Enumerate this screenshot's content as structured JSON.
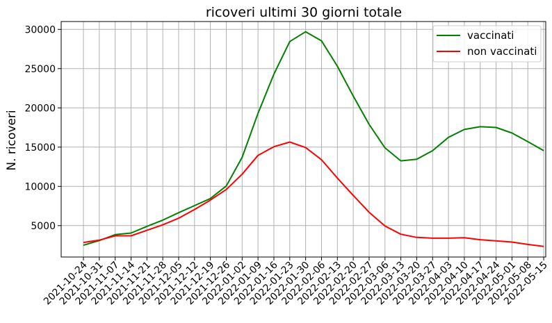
{
  "chart_data": {
    "type": "line",
    "title": "ricoveri ultimi 30 giorni totale",
    "xlabel": "",
    "ylabel": "N. ricoveri",
    "ylim": [
      1000,
      31000
    ],
    "yticks": [
      5000,
      10000,
      15000,
      20000,
      25000,
      30000
    ],
    "grid": true,
    "legend_position": "top-right",
    "x": [
      "2021-10-24",
      "2021-10-31",
      "2021-11-07",
      "2021-11-14",
      "2021-11-21",
      "2021-11-28",
      "2021-12-05",
      "2021-12-12",
      "2021-12-19",
      "2021-12-26",
      "2022-01-02",
      "2022-01-09",
      "2022-01-16",
      "2022-01-23",
      "2022-01-30",
      "2022-02-06",
      "2022-02-13",
      "2022-02-20",
      "2022-02-27",
      "2022-03-06",
      "2022-03-13",
      "2022-03-20",
      "2022-03-27",
      "2022-04-03",
      "2022-04-10",
      "2022-04-17",
      "2022-04-24",
      "2022-05-01",
      "2022-05-08",
      "2022-05-15"
    ],
    "series": [
      {
        "name": "vaccinati",
        "color": "#008000",
        "values": [
          2500,
          3100,
          3850,
          4050,
          4900,
          5700,
          6650,
          7550,
          8450,
          10050,
          13700,
          19300,
          24300,
          28450,
          29700,
          28550,
          25300,
          21500,
          17900,
          14900,
          13250,
          13450,
          14550,
          16250,
          17250,
          17600,
          17500,
          16800,
          15700,
          14550
        ]
      },
      {
        "name": "non vaccinati",
        "color": "#ff0000",
        "values": [
          2850,
          3150,
          3700,
          3700,
          4400,
          5100,
          5950,
          7050,
          8250,
          9600,
          11550,
          13950,
          15050,
          15650,
          14950,
          13400,
          11050,
          8850,
          6700,
          4950,
          3900,
          3500,
          3400,
          3400,
          3450,
          3200,
          3050,
          2900,
          2600,
          2350
        ]
      }
    ]
  }
}
